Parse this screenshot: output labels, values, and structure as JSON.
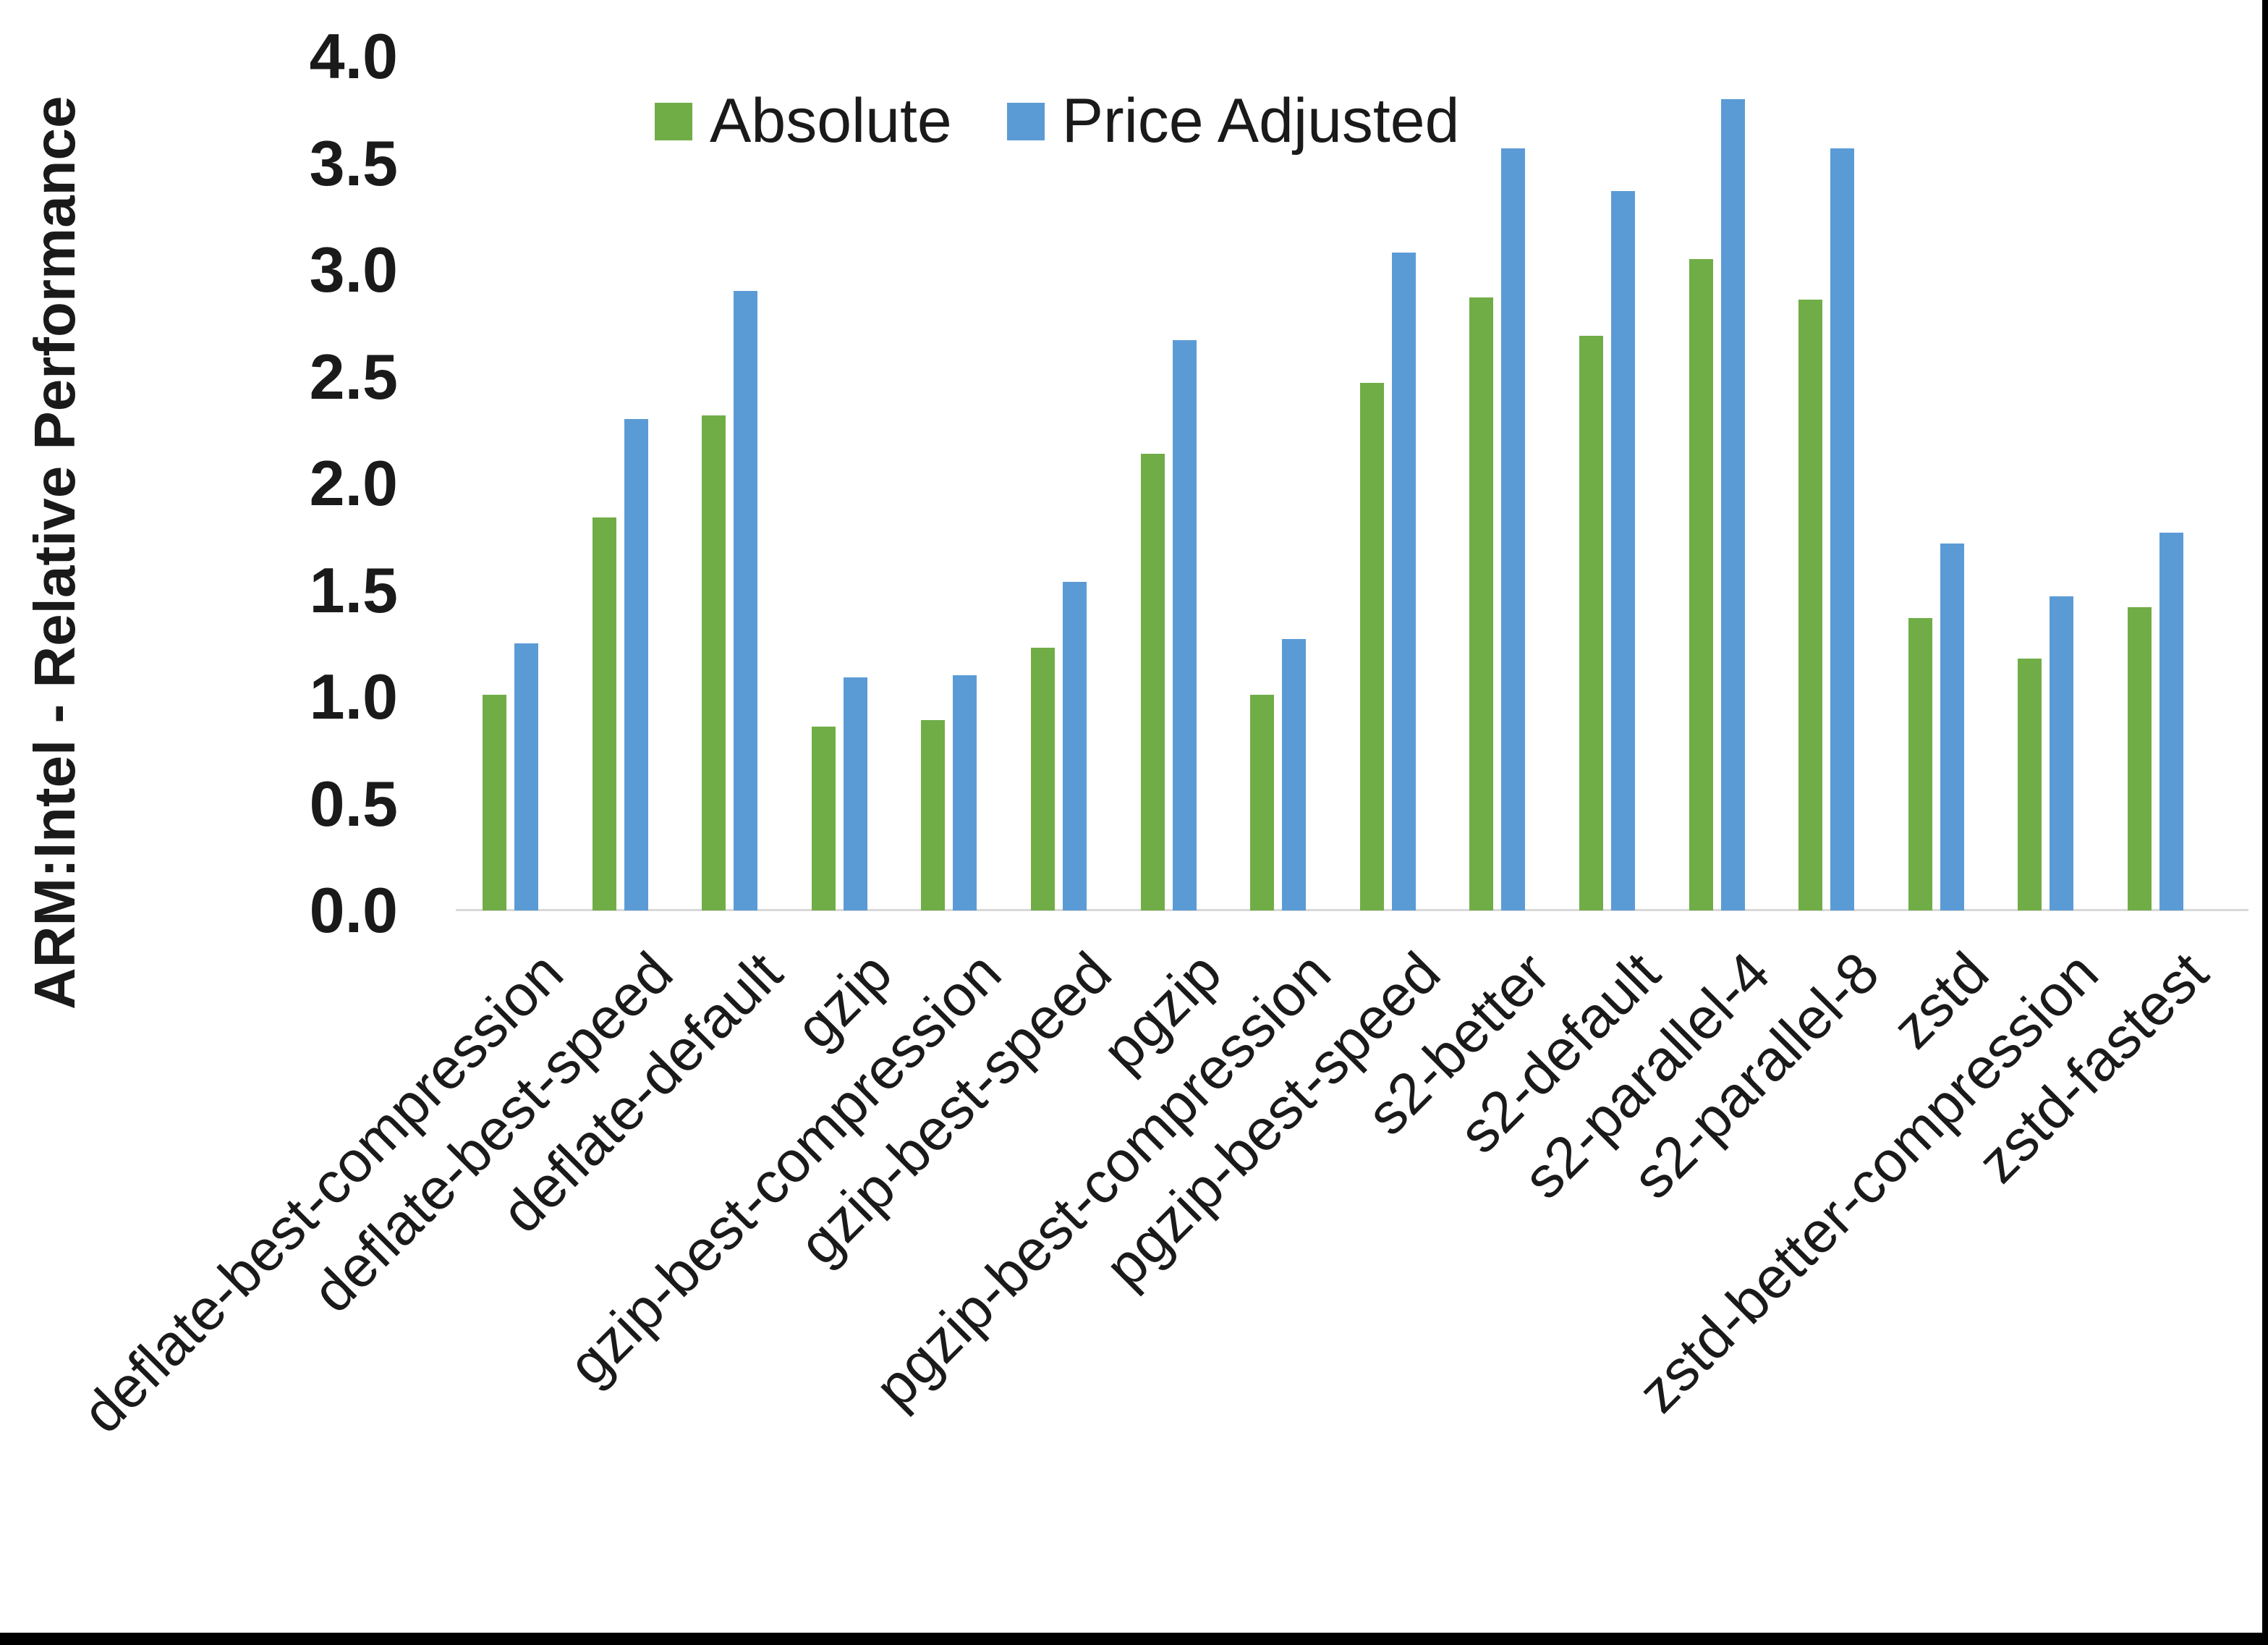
{
  "figure": {
    "y_axis_title": "ARM:Intel - Relative Performance",
    "background": "#ffffff",
    "border_color": "#000000",
    "axis_line_color": "#d9d9d9"
  },
  "legend": {
    "items": [
      {
        "label": "Absolute",
        "color": "#70AD47"
      },
      {
        "label": "Price Adjusted",
        "color": "#5B9BD5"
      }
    ]
  },
  "chart_data": {
    "type": "bar",
    "title": "",
    "xlabel": "",
    "ylabel": "ARM:Intel - Relative Performance",
    "ylim": [
      0.0,
      4.0
    ],
    "ytick_labels": [
      "0.0",
      "0.5",
      "1.0",
      "1.5",
      "2.0",
      "2.5",
      "3.0",
      "3.5",
      "4.0"
    ],
    "grid": false,
    "legend_position": "top",
    "categories": [
      "deflate-best-compression",
      "deflate-best-speed",
      "deflate-default",
      "gzip",
      "gzip-best-compression",
      "gzip-best-speed",
      "pgzip",
      "pgzip-best-compression",
      "pgzip-best-speed",
      "s2-better",
      "s2-default",
      "s2-parallel-4",
      "s2-parallel-8",
      "zstd",
      "zstd-better-compression",
      "zstd-fastest"
    ],
    "series": [
      {
        "name": "Absolute",
        "color": "#70AD47",
        "values": [
          1.01,
          1.84,
          2.32,
          0.86,
          0.89,
          1.23,
          2.14,
          1.01,
          2.47,
          2.87,
          2.69,
          3.05,
          2.86,
          1.37,
          1.18,
          1.42
        ]
      },
      {
        "name": "Price Adjusted",
        "color": "#5B9BD5",
        "values": [
          1.25,
          2.3,
          2.9,
          1.09,
          1.1,
          1.54,
          2.67,
          1.27,
          3.08,
          3.57,
          3.37,
          3.8,
          3.57,
          1.72,
          1.47,
          1.77
        ]
      }
    ]
  }
}
